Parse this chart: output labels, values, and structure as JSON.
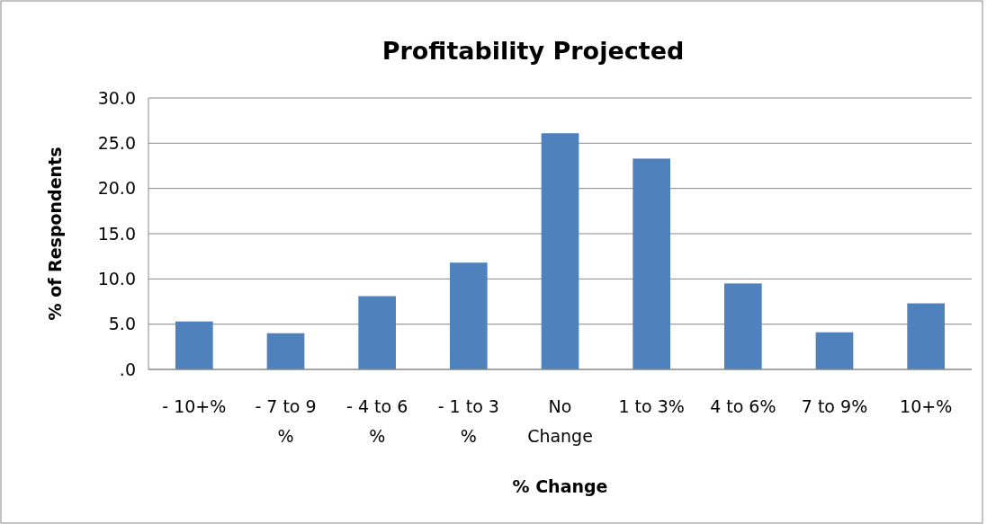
{
  "chart_data": {
    "type": "bar",
    "title": "Profitability Projected",
    "xlabel": "% Change",
    "ylabel": "% of Respondents",
    "categories": [
      "- 10+%",
      "- 7 to 9 %",
      "- 4 to 6 %",
      "- 1 to 3 %",
      "No Change",
      "1 to 3%",
      "4 to 6%",
      "7 to 9%",
      "10+%"
    ],
    "values": [
      5.3,
      4.0,
      8.1,
      11.8,
      26.1,
      23.3,
      9.5,
      4.1,
      7.3
    ],
    "color": "#4f81bd",
    "ylim": [
      0,
      30
    ],
    "yticks": [
      {
        "value": 0,
        "label": ".0"
      },
      {
        "value": 5,
        "label": "5.0"
      },
      {
        "value": 10,
        "label": "10.0"
      },
      {
        "value": 15,
        "label": "15.0"
      },
      {
        "value": 20,
        "label": "20.0"
      },
      {
        "value": 25,
        "label": "25.0"
      },
      {
        "value": 30,
        "label": "30.0"
      }
    ],
    "grid": "y"
  }
}
